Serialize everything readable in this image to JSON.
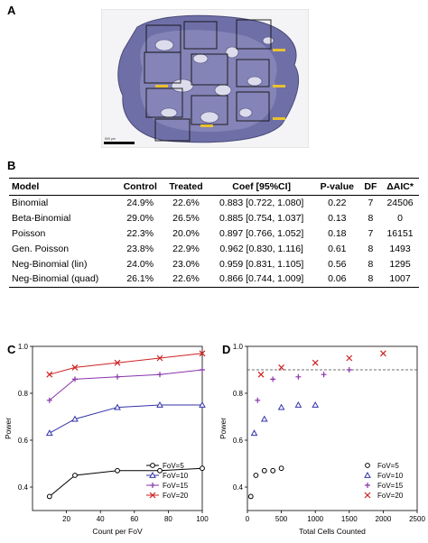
{
  "panel_a": {
    "letter": "A",
    "scale_bar_label": "500 µm"
  },
  "panel_b": {
    "letter": "B",
    "table": {
      "headers": [
        "Model",
        "Control",
        "Treated",
        "Coef [95%CI]",
        "P-value",
        "DF",
        "ΔAIC*"
      ],
      "rows": [
        [
          "Binomial",
          "24.9%",
          "22.6%",
          "0.883 [0.722, 1.080]",
          "0.22",
          "7",
          "24506"
        ],
        [
          "Beta-Binomial",
          "29.0%",
          "26.5%",
          "0.885 [0.754, 1.037]",
          "0.13",
          "8",
          "0"
        ],
        [
          "Poisson",
          "22.3%",
          "20.0%",
          "0.897 [0.766, 1.052]",
          "0.18",
          "7",
          "16151"
        ],
        [
          "Gen. Poisson",
          "23.8%",
          "22.9%",
          "0.962 [0.830, 1.116]",
          "0.61",
          "8",
          "1493"
        ],
        [
          "Neg-Binomial (lin)",
          "24.0%",
          "23.0%",
          "0.959 [0.831, 1.105]",
          "0.56",
          "8",
          "1295"
        ],
        [
          "Neg-Binomial (quad)",
          "26.1%",
          "22.6%",
          "0.866 [0.744, 1.009]",
          "0.06",
          "8",
          "1007"
        ]
      ]
    }
  },
  "chart_data": [
    {
      "letter": "C",
      "type": "line",
      "xlabel": "Count per FoV",
      "ylabel": "Power",
      "xlim": [
        0,
        100
      ],
      "ylim": [
        0.3,
        1.0
      ],
      "xticks": [
        20,
        40,
        60,
        80,
        100
      ],
      "yticks": [
        0.4,
        0.6,
        0.8,
        1.0
      ],
      "grid": false,
      "legend_position": "bottom-right",
      "series": [
        {
          "name": "FoV=5",
          "marker": "circle",
          "color": "#000000",
          "x": [
            10,
            25,
            50,
            75,
            100
          ],
          "y": [
            0.36,
            0.45,
            0.47,
            0.47,
            0.48
          ]
        },
        {
          "name": "FoV=10",
          "marker": "triangle",
          "color": "#3333aa",
          "x": [
            10,
            25,
            50,
            75,
            100
          ],
          "y": [
            0.63,
            0.69,
            0.74,
            0.75,
            0.75
          ]
        },
        {
          "name": "FoV=15",
          "marker": "plus",
          "color": "#8833aa",
          "x": [
            10,
            25,
            50,
            75,
            100
          ],
          "y": [
            0.77,
            0.86,
            0.87,
            0.88,
            0.9
          ]
        },
        {
          "name": "FoV=20",
          "marker": "cross",
          "color": "#cc2222",
          "x": [
            10,
            25,
            50,
            75,
            100
          ],
          "y": [
            0.88,
            0.91,
            0.93,
            0.95,
            0.97
          ]
        }
      ]
    },
    {
      "letter": "D",
      "type": "scatter",
      "xlabel": "Total Cells Counted",
      "ylabel": "Power",
      "xlim": [
        0,
        2500
      ],
      "ylim": [
        0.3,
        1.0
      ],
      "xticks": [
        0,
        500,
        1000,
        1500,
        2000,
        2500
      ],
      "yticks": [
        0.4,
        0.6,
        0.8,
        1.0
      ],
      "grid": false,
      "hline": 0.9,
      "legend_position": "bottom-right",
      "series": [
        {
          "name": "FoV=5",
          "marker": "circle",
          "color": "#000000",
          "x": [
            50,
            125,
            250,
            375,
            500
          ],
          "y": [
            0.36,
            0.45,
            0.47,
            0.47,
            0.48
          ]
        },
        {
          "name": "FoV=10",
          "marker": "triangle",
          "color": "#3333aa",
          "x": [
            100,
            250,
            500,
            750,
            1000
          ],
          "y": [
            0.63,
            0.69,
            0.74,
            0.75,
            0.75
          ]
        },
        {
          "name": "FoV=15",
          "marker": "plus",
          "color": "#8833aa",
          "x": [
            150,
            375,
            750,
            1125,
            1500
          ],
          "y": [
            0.77,
            0.86,
            0.87,
            0.88,
            0.9
          ]
        },
        {
          "name": "FoV=20",
          "marker": "cross",
          "color": "#cc2222",
          "x": [
            200,
            500,
            1000,
            1500,
            2000
          ],
          "y": [
            0.88,
            0.91,
            0.93,
            0.95,
            0.97
          ]
        }
      ]
    }
  ]
}
